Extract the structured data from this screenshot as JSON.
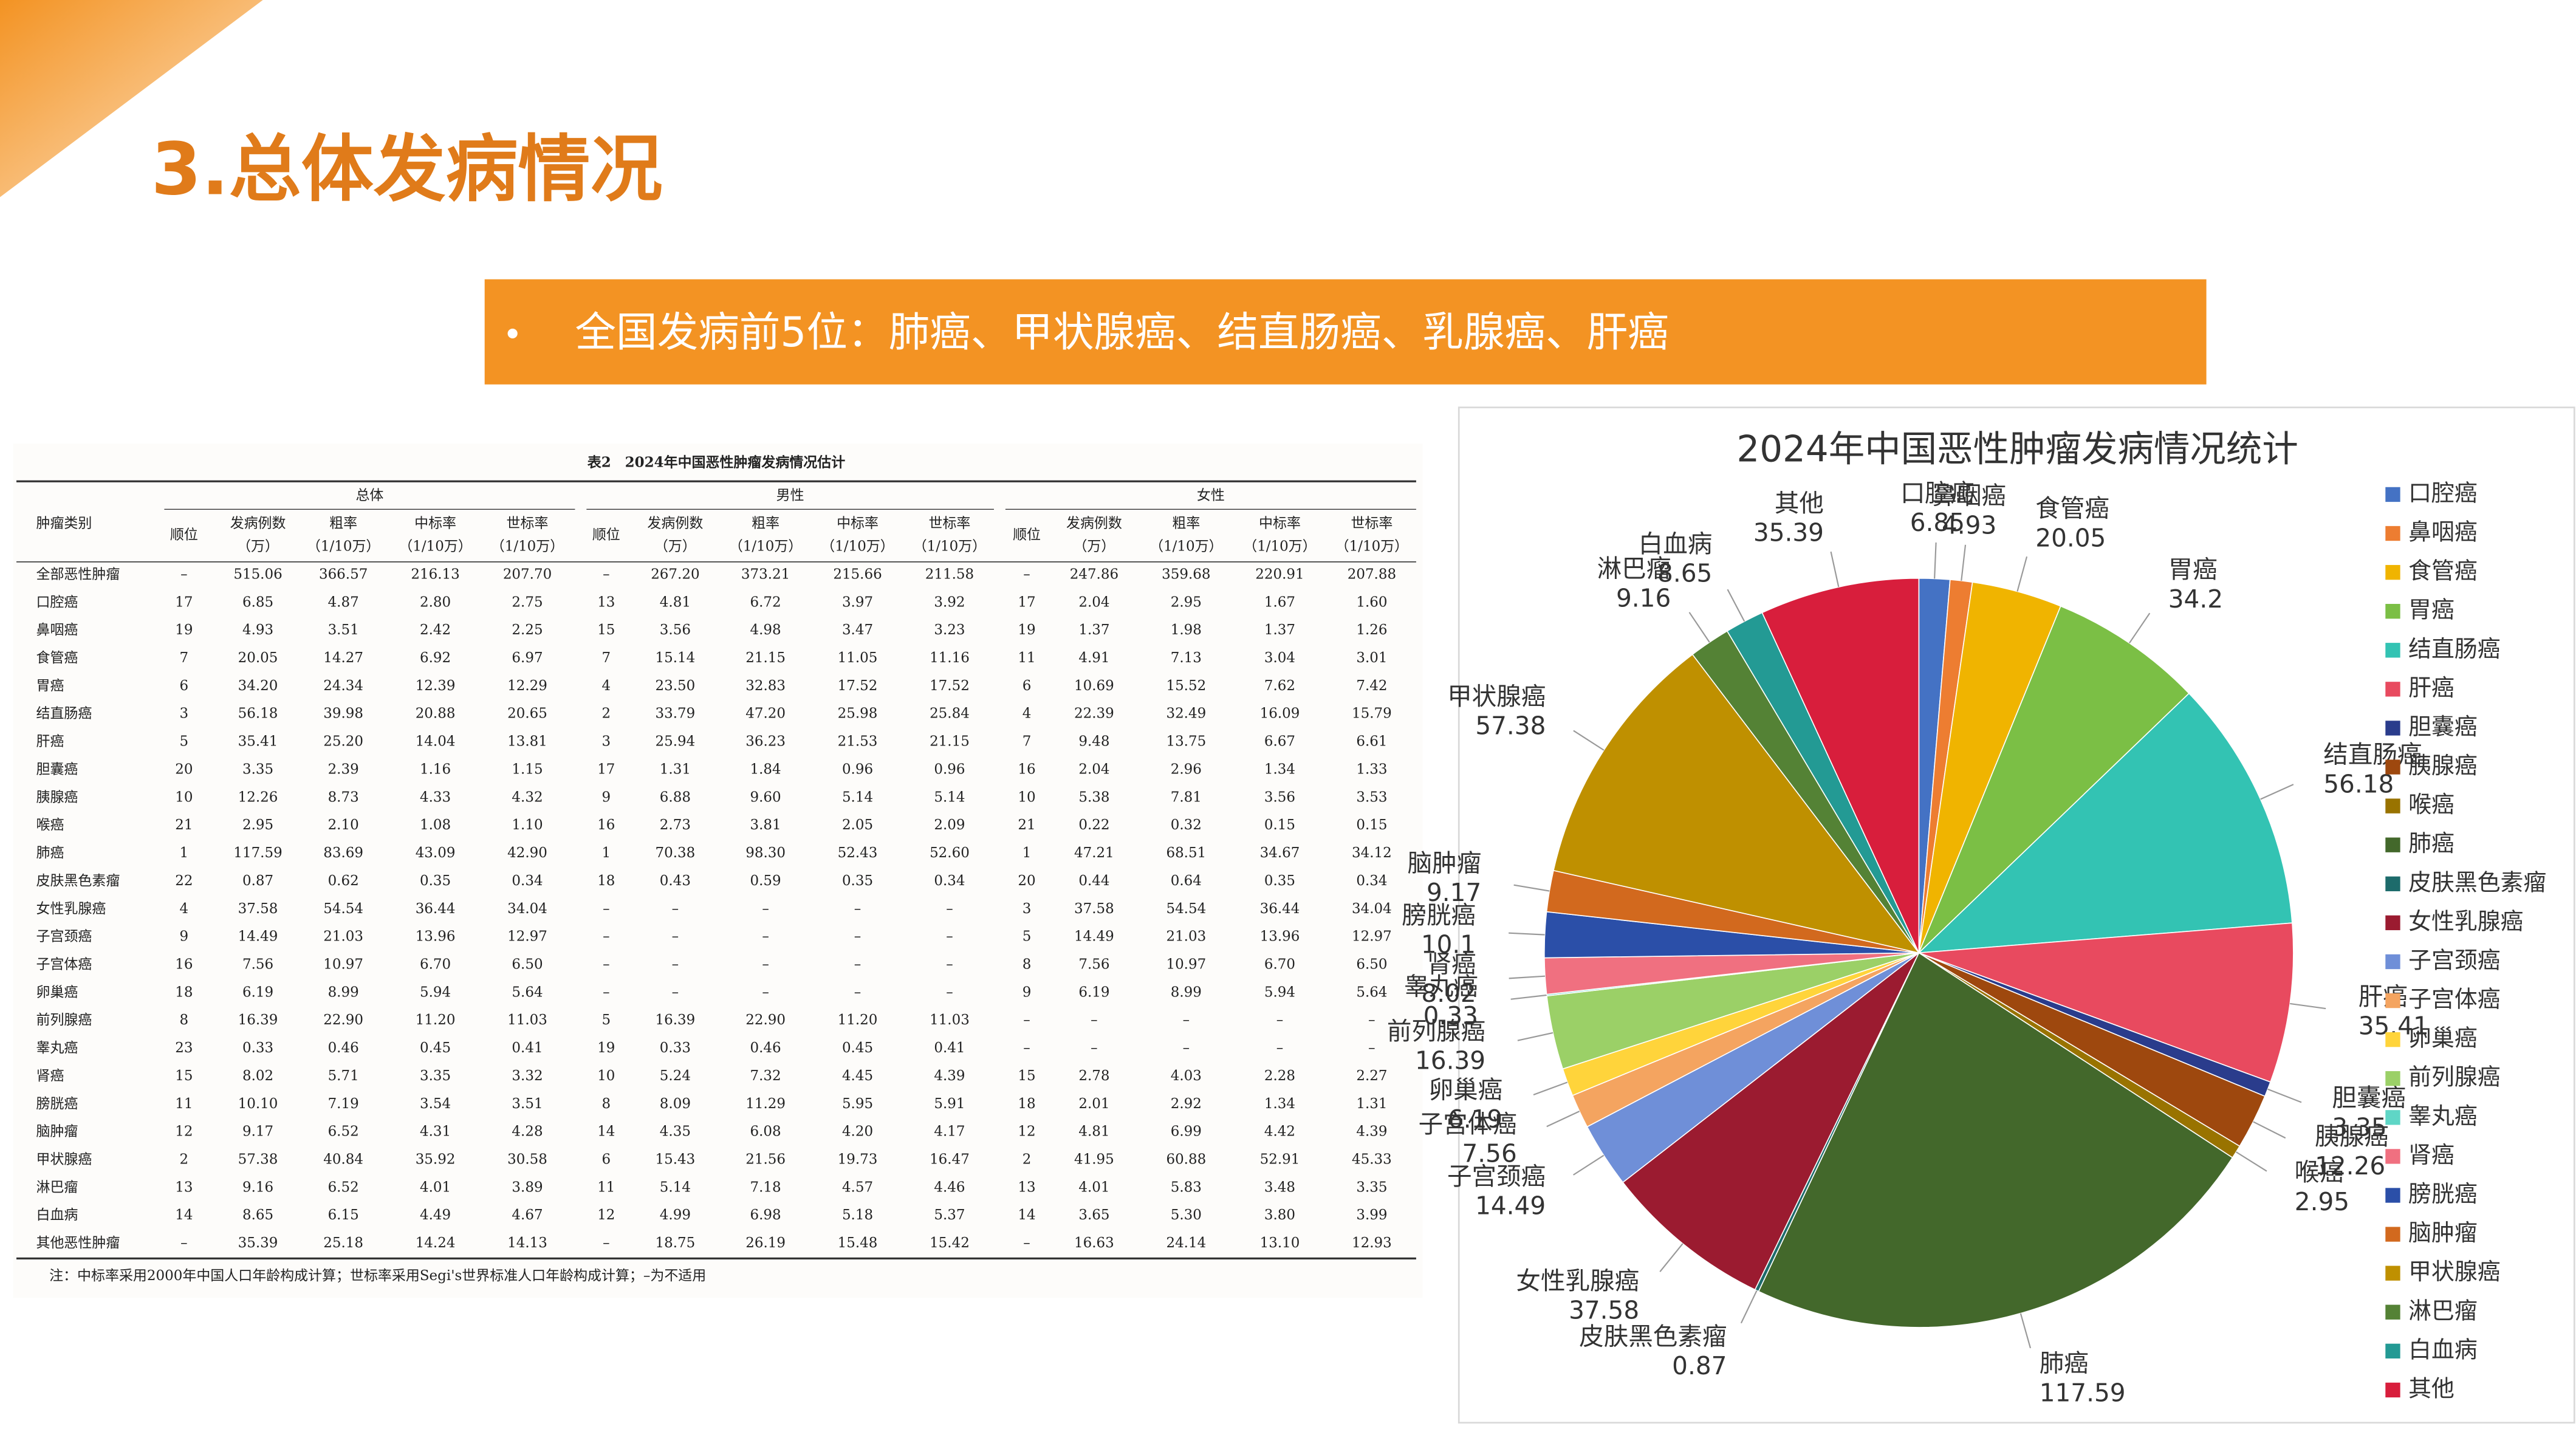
{
  "header": {
    "title": "3.总体发病情况"
  },
  "banner": {
    "text": "全国发病前5位：肺癌、甲状腺癌、结直肠癌、乳腺癌、肝癌"
  },
  "table": {
    "caption": "表2　2024年中国恶性肿瘤发病情况估计",
    "first_header": "肿瘤类别",
    "groups": [
      "总体",
      "男性",
      "女性"
    ],
    "columns": [
      [
        "顺位"
      ],
      [
        "发病例数",
        "（万）"
      ],
      [
        "粗率",
        "（1/10万）"
      ],
      [
        "中标率",
        "（1/10万）"
      ],
      [
        "世标率",
        "（1/10万）"
      ]
    ],
    "rows": [
      [
        "全部恶性肿瘤",
        "–",
        "515.06",
        "366.57",
        "216.13",
        "207.70",
        "–",
        "267.20",
        "373.21",
        "215.66",
        "211.58",
        "–",
        "247.86",
        "359.68",
        "220.91",
        "207.88"
      ],
      [
        "口腔癌",
        "17",
        "6.85",
        "4.87",
        "2.80",
        "2.75",
        "13",
        "4.81",
        "6.72",
        "3.97",
        "3.92",
        "17",
        "2.04",
        "2.95",
        "1.67",
        "1.60"
      ],
      [
        "鼻咽癌",
        "19",
        "4.93",
        "3.51",
        "2.42",
        "2.25",
        "15",
        "3.56",
        "4.98",
        "3.47",
        "3.23",
        "19",
        "1.37",
        "1.98",
        "1.37",
        "1.26"
      ],
      [
        "食管癌",
        "7",
        "20.05",
        "14.27",
        "6.92",
        "6.97",
        "7",
        "15.14",
        "21.15",
        "11.05",
        "11.16",
        "11",
        "4.91",
        "7.13",
        "3.04",
        "3.01"
      ],
      [
        "胃癌",
        "6",
        "34.20",
        "24.34",
        "12.39",
        "12.29",
        "4",
        "23.50",
        "32.83",
        "17.52",
        "17.52",
        "6",
        "10.69",
        "15.52",
        "7.62",
        "7.42"
      ],
      [
        "结直肠癌",
        "3",
        "56.18",
        "39.98",
        "20.88",
        "20.65",
        "2",
        "33.79",
        "47.20",
        "25.98",
        "25.84",
        "4",
        "22.39",
        "32.49",
        "16.09",
        "15.79"
      ],
      [
        "肝癌",
        "5",
        "35.41",
        "25.20",
        "14.04",
        "13.81",
        "3",
        "25.94",
        "36.23",
        "21.53",
        "21.15",
        "7",
        "9.48",
        "13.75",
        "6.67",
        "6.61"
      ],
      [
        "胆囊癌",
        "20",
        "3.35",
        "2.39",
        "1.16",
        "1.15",
        "17",
        "1.31",
        "1.84",
        "0.96",
        "0.96",
        "16",
        "2.04",
        "2.96",
        "1.34",
        "1.33"
      ],
      [
        "胰腺癌",
        "10",
        "12.26",
        "8.73",
        "4.33",
        "4.32",
        "9",
        "6.88",
        "9.60",
        "5.14",
        "5.14",
        "10",
        "5.38",
        "7.81",
        "3.56",
        "3.53"
      ],
      [
        "喉癌",
        "21",
        "2.95",
        "2.10",
        "1.08",
        "1.10",
        "16",
        "2.73",
        "3.81",
        "2.05",
        "2.09",
        "21",
        "0.22",
        "0.32",
        "0.15",
        "0.15"
      ],
      [
        "肺癌",
        "1",
        "117.59",
        "83.69",
        "43.09",
        "42.90",
        "1",
        "70.38",
        "98.30",
        "52.43",
        "52.60",
        "1",
        "47.21",
        "68.51",
        "34.67",
        "34.12"
      ],
      [
        "皮肤黑色素瘤",
        "22",
        "0.87",
        "0.62",
        "0.35",
        "0.34",
        "18",
        "0.43",
        "0.59",
        "0.35",
        "0.34",
        "20",
        "0.44",
        "0.64",
        "0.35",
        "0.34"
      ],
      [
        "女性乳腺癌",
        "4",
        "37.58",
        "54.54",
        "36.44",
        "34.04",
        "–",
        "–",
        "–",
        "–",
        "–",
        "3",
        "37.58",
        "54.54",
        "36.44",
        "34.04"
      ],
      [
        "子宫颈癌",
        "9",
        "14.49",
        "21.03",
        "13.96",
        "12.97",
        "–",
        "–",
        "–",
        "–",
        "–",
        "5",
        "14.49",
        "21.03",
        "13.96",
        "12.97"
      ],
      [
        "子宫体癌",
        "16",
        "7.56",
        "10.97",
        "6.70",
        "6.50",
        "–",
        "–",
        "–",
        "–",
        "–",
        "8",
        "7.56",
        "10.97",
        "6.70",
        "6.50"
      ],
      [
        "卵巢癌",
        "18",
        "6.19",
        "8.99",
        "5.94",
        "5.64",
        "–",
        "–",
        "–",
        "–",
        "–",
        "9",
        "6.19",
        "8.99",
        "5.94",
        "5.64"
      ],
      [
        "前列腺癌",
        "8",
        "16.39",
        "22.90",
        "11.20",
        "11.03",
        "5",
        "16.39",
        "22.90",
        "11.20",
        "11.03",
        "–",
        "–",
        "–",
        "–",
        "–"
      ],
      [
        "睾丸癌",
        "23",
        "0.33",
        "0.46",
        "0.45",
        "0.41",
        "19",
        "0.33",
        "0.46",
        "0.45",
        "0.41",
        "–",
        "–",
        "–",
        "–",
        "–"
      ],
      [
        "肾癌",
        "15",
        "8.02",
        "5.71",
        "3.35",
        "3.32",
        "10",
        "5.24",
        "7.32",
        "4.45",
        "4.39",
        "15",
        "2.78",
        "4.03",
        "2.28",
        "2.27"
      ],
      [
        "膀胱癌",
        "11",
        "10.10",
        "7.19",
        "3.54",
        "3.51",
        "8",
        "8.09",
        "11.29",
        "5.95",
        "5.91",
        "18",
        "2.01",
        "2.92",
        "1.34",
        "1.31"
      ],
      [
        "脑肿瘤",
        "12",
        "9.17",
        "6.52",
        "4.31",
        "4.28",
        "14",
        "4.35",
        "6.08",
        "4.20",
        "4.17",
        "12",
        "4.81",
        "6.99",
        "4.42",
        "4.39"
      ],
      [
        "甲状腺癌",
        "2",
        "57.38",
        "40.84",
        "35.92",
        "30.58",
        "6",
        "15.43",
        "21.56",
        "19.73",
        "16.47",
        "2",
        "41.95",
        "60.88",
        "52.91",
        "45.33"
      ],
      [
        "淋巴瘤",
        "13",
        "9.16",
        "6.52",
        "4.01",
        "3.89",
        "11",
        "5.14",
        "7.18",
        "4.57",
        "4.46",
        "13",
        "4.01",
        "5.83",
        "3.48",
        "3.35"
      ],
      [
        "白血病",
        "14",
        "8.65",
        "6.15",
        "4.49",
        "4.67",
        "12",
        "4.99",
        "6.98",
        "5.18",
        "5.37",
        "14",
        "3.65",
        "5.30",
        "3.80",
        "3.99"
      ],
      [
        "其他恶性肿瘤",
        "–",
        "35.39",
        "25.18",
        "14.24",
        "14.13",
        "–",
        "18.75",
        "26.19",
        "15.48",
        "15.42",
        "–",
        "16.63",
        "24.14",
        "13.10",
        "12.93"
      ]
    ],
    "note": "注：中标率采用2000年中国人口年龄构成计算；世标率采用Segi's世界标准人口年龄构成计算；–为不适用"
  },
  "chart_data": {
    "type": "pie",
    "title": "2024年中国恶性肿瘤发病情况统计",
    "categories": [
      "口腔癌",
      "鼻咽癌",
      "食管癌",
      "胃癌",
      "结直肠癌",
      "肝癌",
      "胆囊癌",
      "胰腺癌",
      "喉癌",
      "肺癌",
      "皮肤黑色素瘤",
      "女性乳腺癌",
      "子宫颈癌",
      "子宫体癌",
      "卵巢癌",
      "前列腺癌",
      "睾丸癌",
      "肾癌",
      "膀胱癌",
      "脑肿瘤",
      "甲状腺癌",
      "淋巴瘤",
      "白血病",
      "其他"
    ],
    "values": [
      6.85,
      4.93,
      20.05,
      34.2,
      56.18,
      35.41,
      3.35,
      12.26,
      2.95,
      117.59,
      0.87,
      37.58,
      14.49,
      7.56,
      6.19,
      16.39,
      0.33,
      8.02,
      10.1,
      9.17,
      57.38,
      9.16,
      8.65,
      35.39
    ],
    "colors": [
      "#4472c4",
      "#ed7d31",
      "#f0b400",
      "#7bbf45",
      "#33c3b3",
      "#e84a5f",
      "#2a3c8c",
      "#9e480e",
      "#997300",
      "#43682b",
      "#1d6b6b",
      "#9b1b30",
      "#6f8fd8",
      "#f4a460",
      "#ffd43b",
      "#9bd067",
      "#5fd6c6",
      "#f07080",
      "#2b4fa8",
      "#d2691e",
      "#bf9000",
      "#548235",
      "#239a94",
      "#d81e3c"
    ],
    "legend": "right"
  }
}
